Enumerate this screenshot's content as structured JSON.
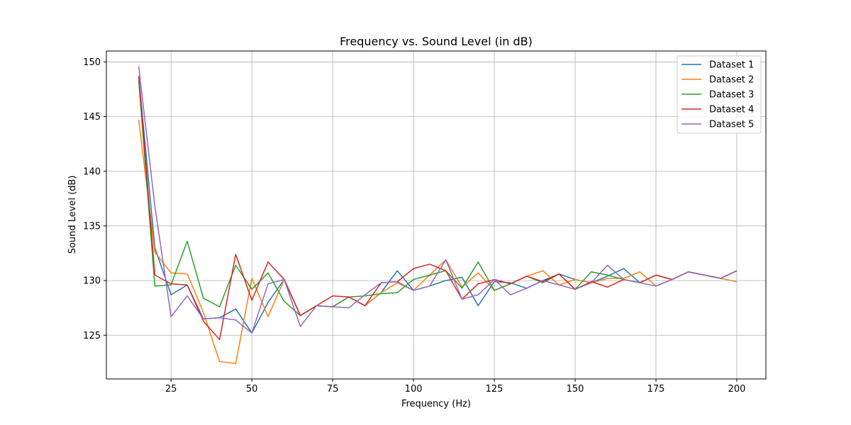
{
  "chart_data": {
    "type": "line",
    "title": "Frequency vs. Sound Level (in dB)",
    "xlabel": "Frequency (Hz)",
    "ylabel": "Sound Level (dB)",
    "xlim": [
      5,
      209
    ],
    "ylim": [
      121,
      151
    ],
    "xticks": [
      25,
      50,
      75,
      100,
      125,
      150,
      175,
      200
    ],
    "yticks": [
      125,
      130,
      135,
      140,
      145,
      150
    ],
    "grid": true,
    "legend_position": "top-right",
    "x": [
      15,
      20,
      25,
      30,
      35,
      40,
      45,
      50,
      55,
      60,
      65,
      70,
      75,
      80,
      85,
      90,
      95,
      100,
      105,
      110,
      115,
      120,
      125,
      130,
      135,
      140,
      145,
      150,
      155,
      160,
      165,
      170,
      175,
      180,
      185,
      190,
      195,
      200
    ],
    "series": [
      {
        "name": "Dataset 1",
        "color": "#1f77b4",
        "values": [
          148.7,
          133.0,
          128.7,
          129.6,
          126.5,
          126.6,
          127.4,
          125.2,
          128.0,
          130.1,
          126.8,
          127.7,
          127.6,
          128.5,
          127.7,
          128.9,
          130.9,
          129.1,
          129.5,
          130.0,
          130.3,
          127.7,
          129.9,
          129.8,
          129.3,
          130.0,
          130.6,
          130.1,
          129.8,
          130.4,
          131.1,
          129.8,
          130.5,
          130.1,
          130.8,
          130.5,
          130.2,
          130.9
        ]
      },
      {
        "name": "Dataset 2",
        "color": "#ff7f0e",
        "values": [
          144.7,
          132.6,
          130.7,
          130.6,
          127.1,
          122.6,
          122.4,
          130.2,
          126.7,
          130.1,
          126.8,
          127.7,
          127.6,
          128.5,
          127.7,
          128.9,
          129.8,
          129.1,
          130.5,
          131.9,
          129.4,
          130.7,
          129.1,
          129.7,
          130.4,
          130.9,
          129.6,
          130.1,
          129.8,
          130.2,
          130.2,
          130.8,
          129.5,
          130.1,
          130.8,
          130.5,
          130.2,
          129.9
        ]
      },
      {
        "name": "Dataset 3",
        "color": "#2ca02c",
        "values": [
          148.3,
          129.5,
          129.6,
          133.6,
          128.4,
          127.6,
          131.4,
          129.2,
          130.7,
          128.1,
          126.8,
          127.7,
          127.6,
          128.5,
          128.6,
          128.8,
          128.9,
          130.1,
          130.5,
          130.9,
          129.3,
          131.7,
          129.1,
          129.7,
          130.4,
          129.8,
          130.6,
          129.2,
          130.8,
          130.5,
          130.1,
          129.8,
          130.5,
          130.1,
          130.8,
          130.5,
          130.2,
          130.9
        ]
      },
      {
        "name": "Dataset 4",
        "color": "#d62728",
        "values": [
          148.7,
          130.5,
          129.7,
          129.6,
          126.3,
          124.6,
          132.4,
          128.2,
          131.7,
          130.1,
          126.8,
          127.7,
          128.6,
          128.5,
          127.7,
          129.8,
          129.9,
          131.1,
          131.5,
          130.9,
          128.3,
          129.7,
          130.1,
          129.7,
          130.4,
          129.9,
          130.6,
          129.2,
          129.9,
          129.4,
          130.1,
          129.8,
          130.5,
          130.1,
          130.8,
          130.5,
          130.2,
          130.9
        ]
      },
      {
        "name": "Dataset 5",
        "color": "#9467bd",
        "values": [
          149.6,
          136.8,
          126.7,
          128.6,
          126.5,
          126.6,
          126.4,
          125.2,
          129.7,
          130.1,
          125.8,
          127.7,
          127.6,
          127.5,
          128.7,
          129.8,
          129.9,
          129.1,
          129.5,
          131.9,
          128.3,
          128.7,
          130.1,
          128.7,
          129.3,
          130.0,
          129.6,
          129.2,
          129.8,
          131.4,
          130.1,
          129.8,
          129.5,
          130.1,
          130.8,
          130.5,
          130.2,
          130.9
        ]
      }
    ]
  }
}
